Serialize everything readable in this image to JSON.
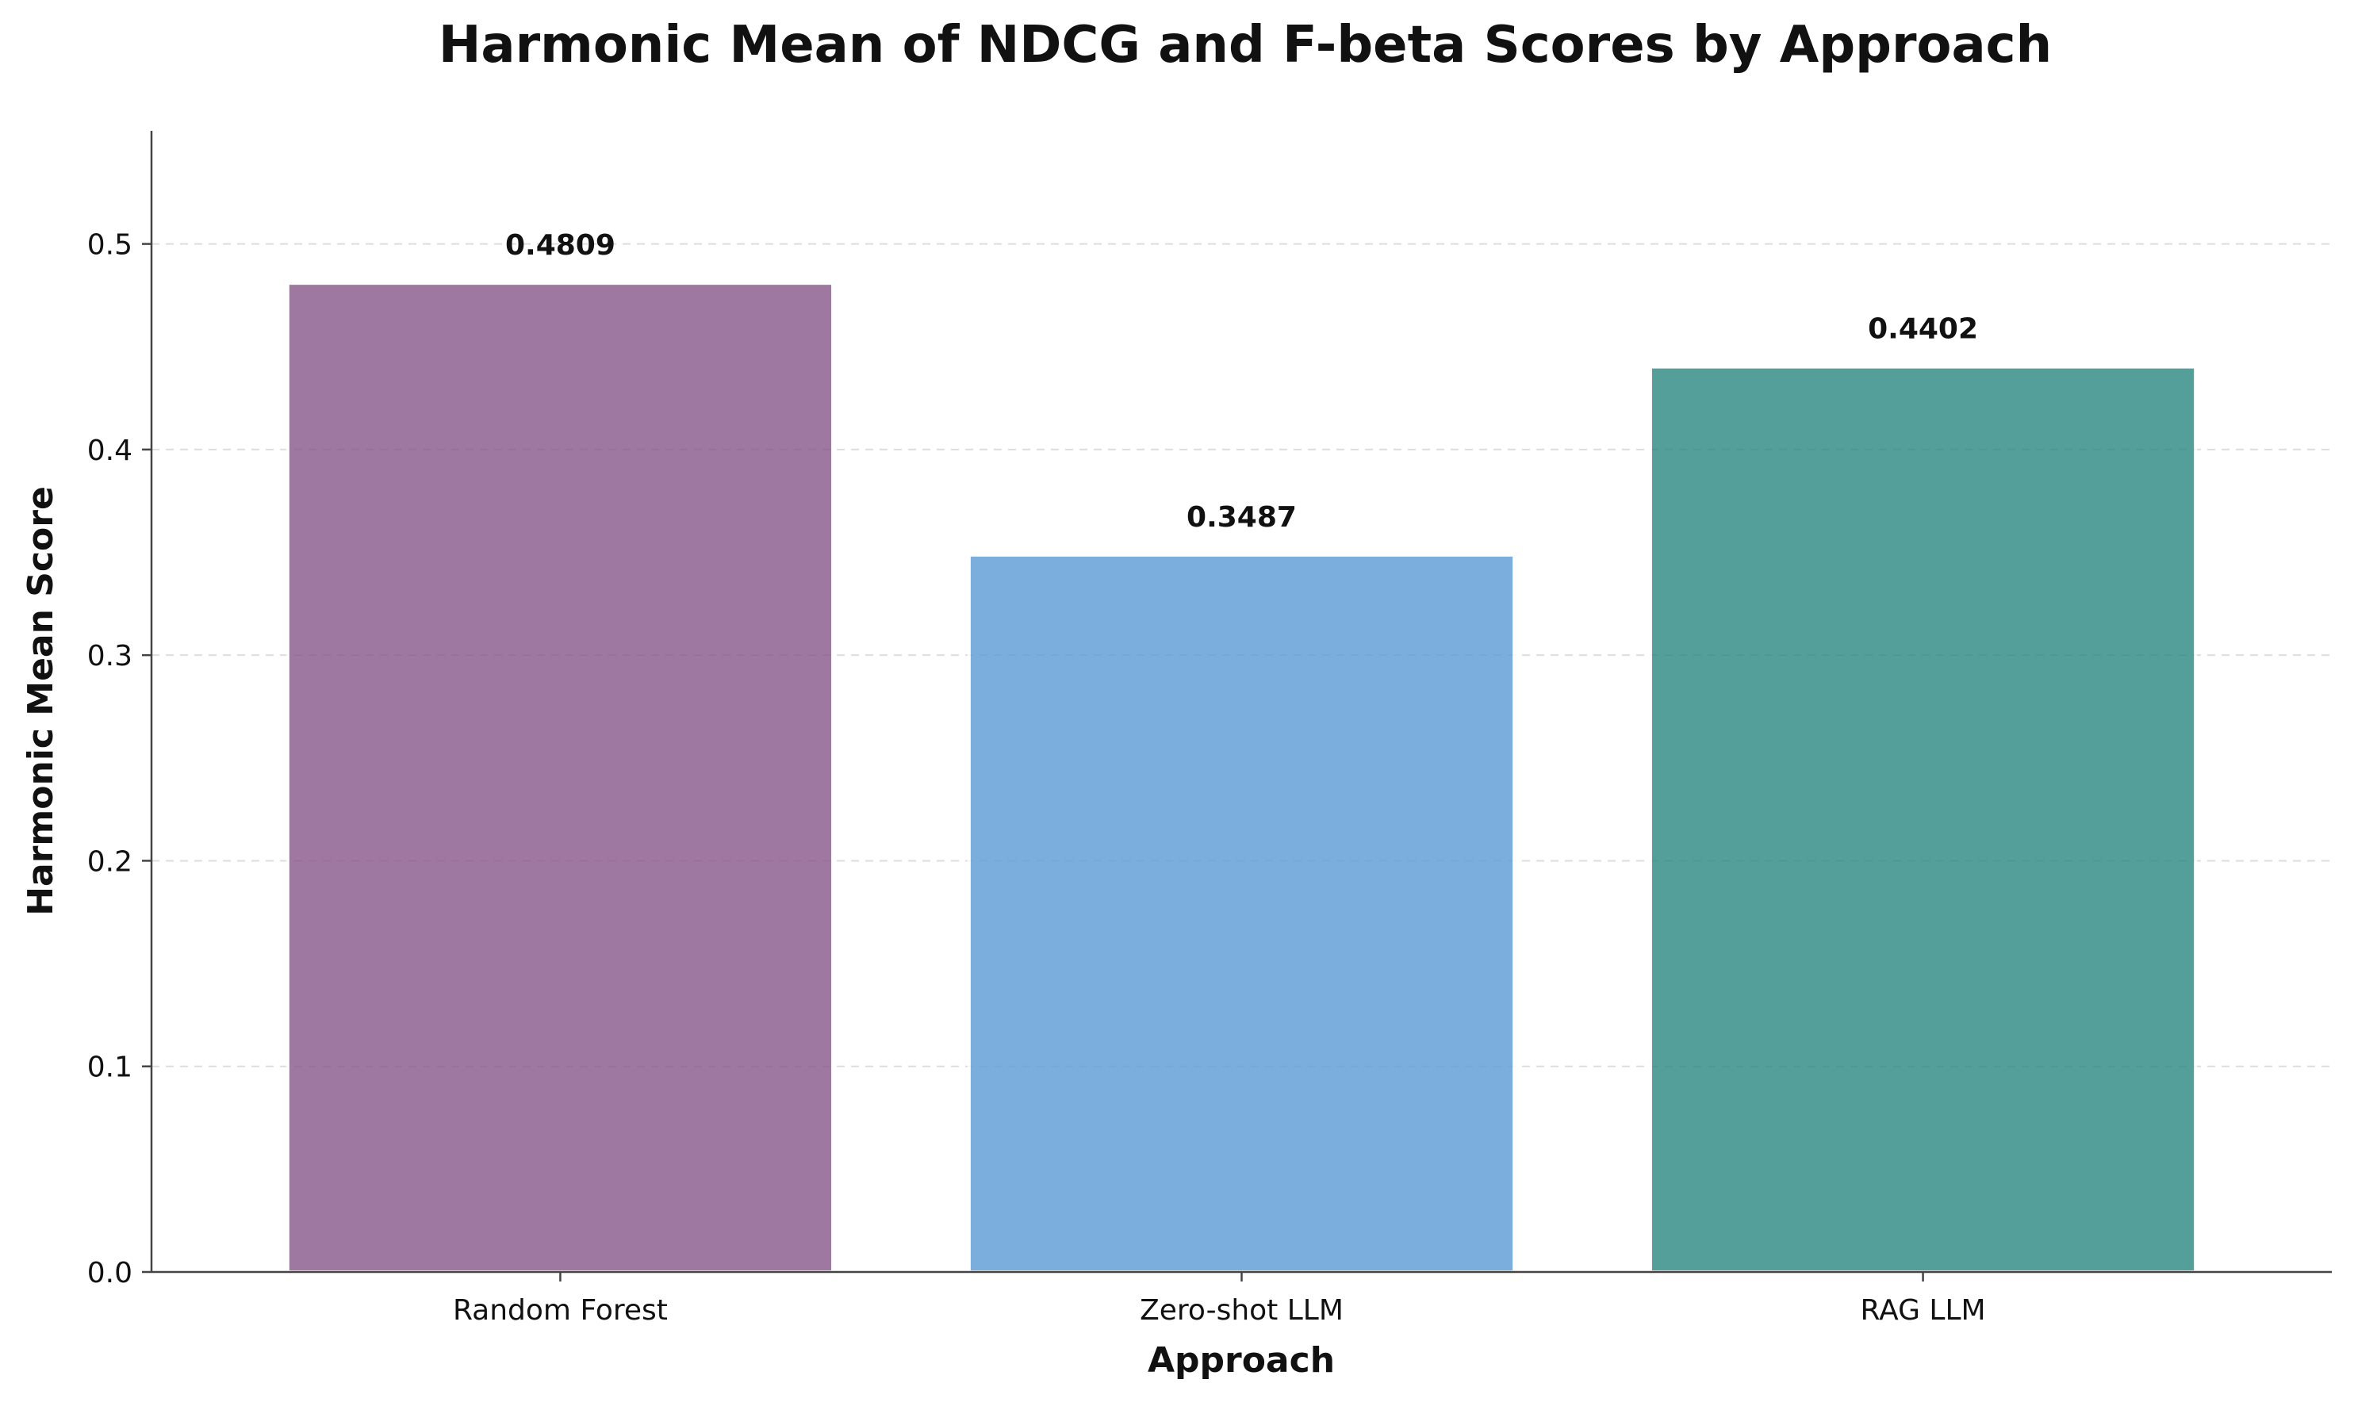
{
  "chart_data": {
    "type": "bar",
    "title": "Harmonic Mean of NDCG and F-beta Scores by Approach",
    "xlabel": "Approach",
    "ylabel": "Harmonic Mean Score",
    "categories": [
      "Random Forest",
      "Zero-shot LLM",
      "RAG LLM"
    ],
    "values": [
      0.4809,
      0.3487,
      0.4402
    ],
    "value_labels": [
      "0.4809",
      "0.3487",
      "0.4402"
    ],
    "ylim": [
      0,
      0.555
    ],
    "yticks": [
      0.0,
      0.1,
      0.2,
      0.3,
      0.4,
      0.5
    ],
    "ytick_labels": [
      "0.0",
      "0.1",
      "0.2",
      "0.3",
      "0.4",
      "0.5"
    ],
    "grid": "y-dashed",
    "legend": "none",
    "colors": [
      "#88578b",
      "#5b9bd5",
      "#2a8882"
    ]
  }
}
